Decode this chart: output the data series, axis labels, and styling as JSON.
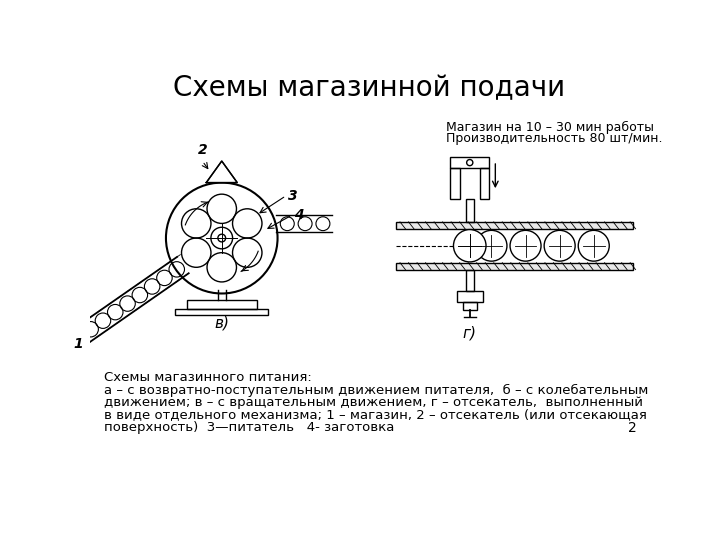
{
  "title": "Схемы магазинной подачи",
  "title_fontsize": 20,
  "subtitle_line1": "Магазин на 10 – 30 мин работы",
  "subtitle_line2": "Производительность 80 шт/мин.",
  "caption_line1": "Схемы магазинного питания:",
  "caption_line2": "а – с возвратно-поступательным движением питателя,  б – с колебательным",
  "caption_line3": "движением; в – с вращательным движением, г – отсекатель,  выполненный",
  "caption_line4": "в виде отдельного механизма; 1 – магазин, 2 – отсекатель (или отсекающая",
  "caption_line5": "поверхность)  3—питатель   4- заготовка",
  "page_number": "2",
  "label_v": "в)",
  "label_g": "г)",
  "bg_color": "#ffffff",
  "line_color": "#000000",
  "font_color": "#000000"
}
